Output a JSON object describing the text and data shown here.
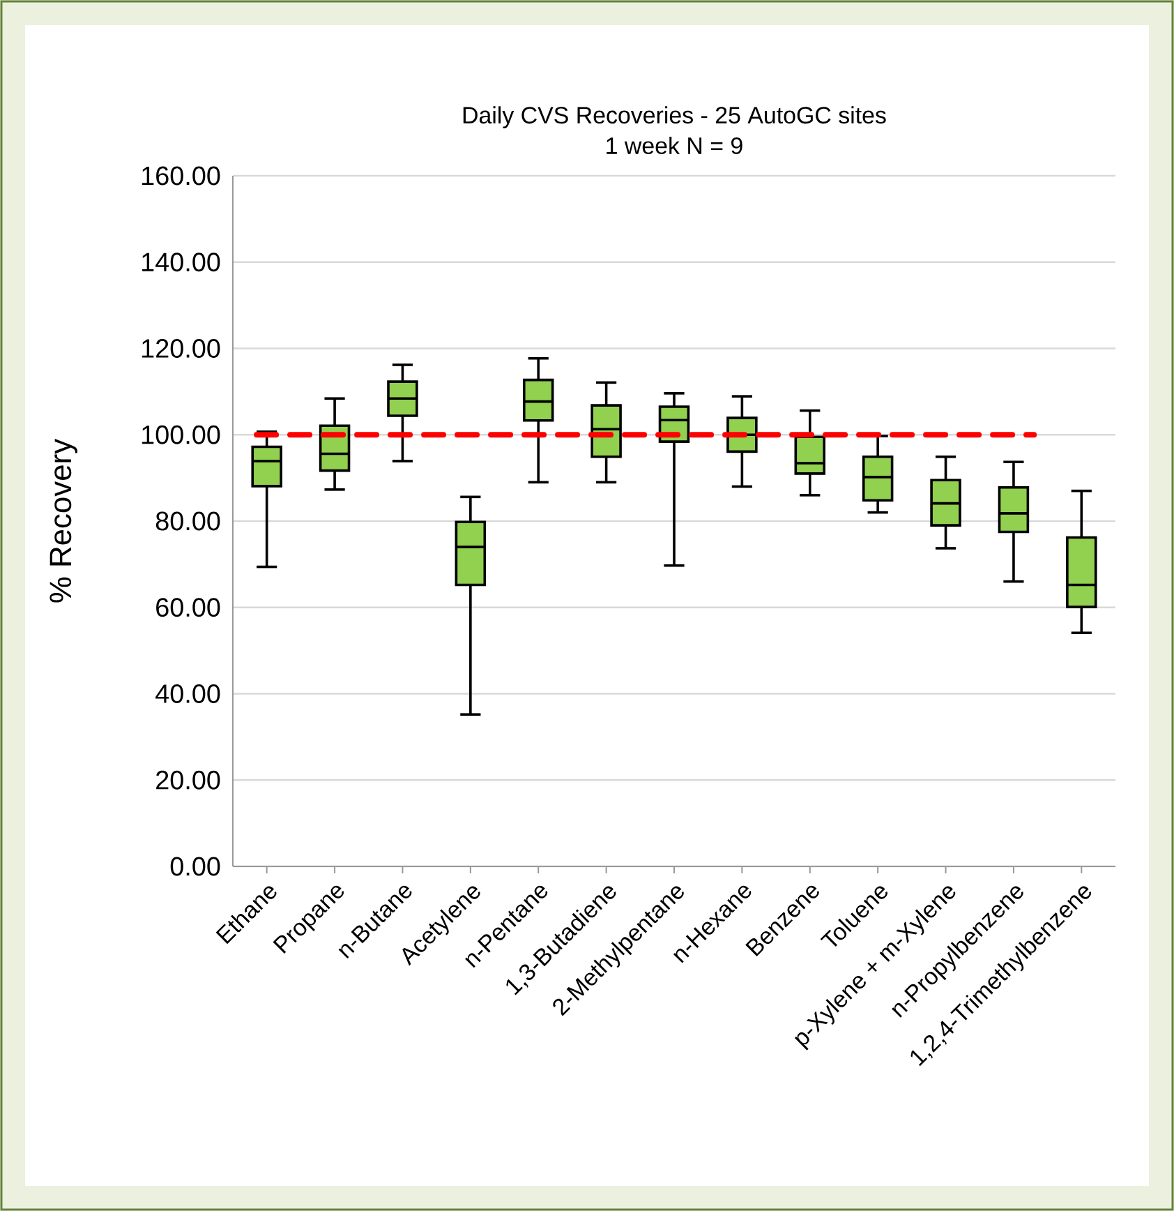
{
  "chart_data": {
    "type": "box",
    "title": "Daily CVS Recoveries - 25 AutoGC sites",
    "subtitle": "1 week N = 9",
    "ylabel": "% Recovery",
    "categories": [
      "Ethane",
      "Propane",
      "n-Butane",
      "Acetylene",
      "n-Pentane",
      "1,3-Butadiene",
      "2-Methylpentane",
      "n-Hexane",
      "Benzene",
      "Toluene",
      "p-Xylene + m-Xylene",
      "n-Propylbenzene",
      "1,2,4-Trimethylbenzene"
    ],
    "boxes": [
      {
        "low": 69.4,
        "q1": 88.1,
        "median": 93.9,
        "q3": 97.2,
        "high": 100.7
      },
      {
        "low": 87.3,
        "q1": 91.7,
        "median": 95.6,
        "q3": 102.1,
        "high": 108.4
      },
      {
        "low": 93.9,
        "q1": 104.4,
        "median": 108.4,
        "q3": 112.3,
        "high": 116.2
      },
      {
        "low": 35.2,
        "q1": 65.2,
        "median": 74.0,
        "q3": 79.8,
        "high": 85.6
      },
      {
        "low": 89.0,
        "q1": 103.3,
        "median": 107.7,
        "q3": 112.7,
        "high": 117.7
      },
      {
        "low": 89.0,
        "q1": 94.9,
        "median": 101.3,
        "q3": 106.8,
        "high": 112.1
      },
      {
        "low": 69.7,
        "q1": 98.4,
        "median": 103.4,
        "q3": 106.5,
        "high": 109.6
      },
      {
        "low": 88.0,
        "q1": 96.1,
        "median": 100.0,
        "q3": 103.9,
        "high": 108.9
      },
      {
        "low": 86.0,
        "q1": 91.0,
        "median": 93.4,
        "q3": 99.5,
        "high": 105.6
      },
      {
        "low": 82.0,
        "q1": 84.8,
        "median": 90.2,
        "q3": 94.9,
        "high": 99.7
      },
      {
        "low": 73.7,
        "q1": 79.0,
        "median": 84.1,
        "q3": 89.5,
        "high": 94.9
      },
      {
        "low": 66.0,
        "q1": 77.5,
        "median": 81.8,
        "q3": 87.8,
        "high": 93.7
      },
      {
        "low": 54.1,
        "q1": 60.1,
        "median": 65.2,
        "q3": 76.2,
        "high": 87.0
      }
    ],
    "color": "#92d050",
    "ylim": [
      0,
      160
    ],
    "yticks": [
      {
        "value": 0,
        "label": "0.00"
      },
      {
        "value": 20,
        "label": "20.00"
      },
      {
        "value": 40,
        "label": "40.00"
      },
      {
        "value": 60,
        "label": "60.00"
      },
      {
        "value": 80,
        "label": "80.00"
      },
      {
        "value": 100,
        "label": "100.00"
      },
      {
        "value": 120,
        "label": "120.00"
      },
      {
        "value": 140,
        "label": "140.00"
      },
      {
        "value": 160,
        "label": "160.00"
      }
    ],
    "grid": "y",
    "ref_lines": [
      {
        "axis": "y",
        "value": 100,
        "color": "#ff0000",
        "line_style": "dashed"
      }
    ]
  }
}
